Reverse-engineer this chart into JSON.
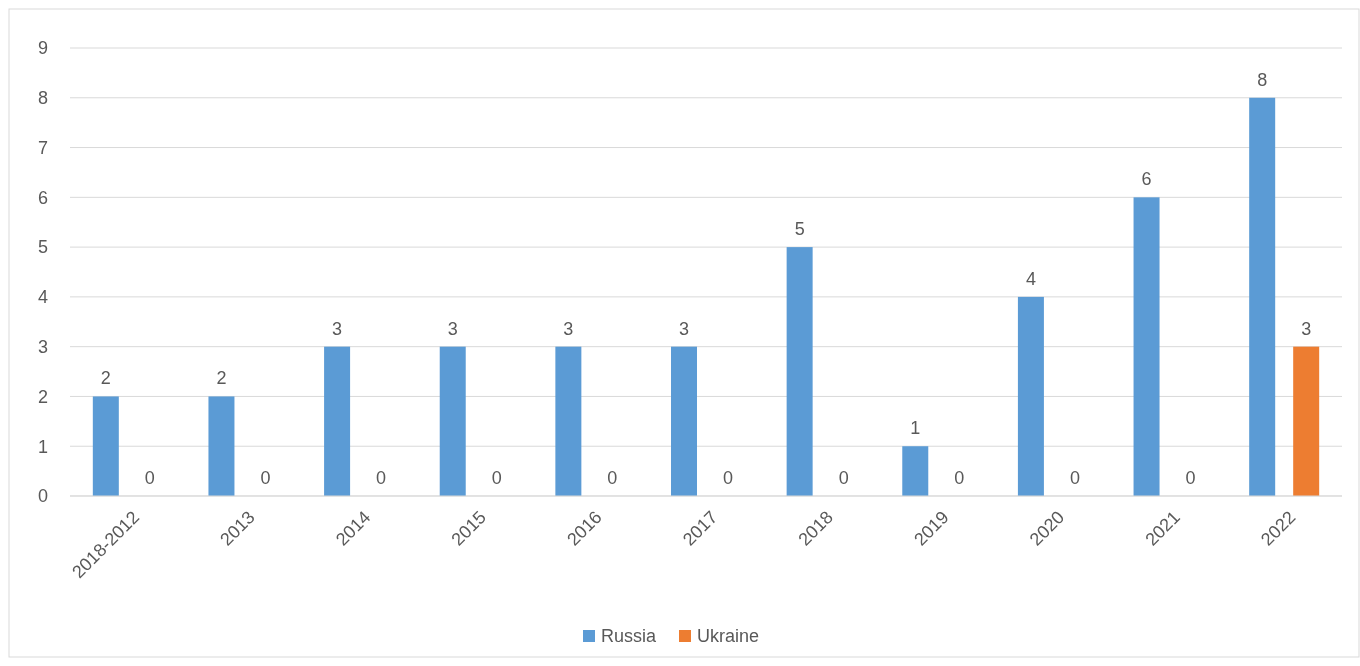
{
  "chart_data": {
    "type": "bar",
    "categories": [
      "2018-2012",
      "2013",
      "2014",
      "2015",
      "2016",
      "2017",
      "2018",
      "2019",
      "2020",
      "2021",
      "2022"
    ],
    "series": [
      {
        "name": "Russia",
        "color": "#5b9bd5",
        "values": [
          2,
          2,
          3,
          3,
          3,
          3,
          5,
          1,
          4,
          6,
          8
        ]
      },
      {
        "name": "Ukraine",
        "color": "#ed7d31",
        "values": [
          0,
          0,
          0,
          0,
          0,
          0,
          0,
          0,
          0,
          0,
          3
        ]
      }
    ],
    "ylim": [
      0,
      9
    ],
    "yticks": [
      0,
      1,
      2,
      3,
      4,
      5,
      6,
      7,
      8,
      9
    ],
    "grid": "y",
    "legend": "bottom",
    "data_labels": true
  }
}
